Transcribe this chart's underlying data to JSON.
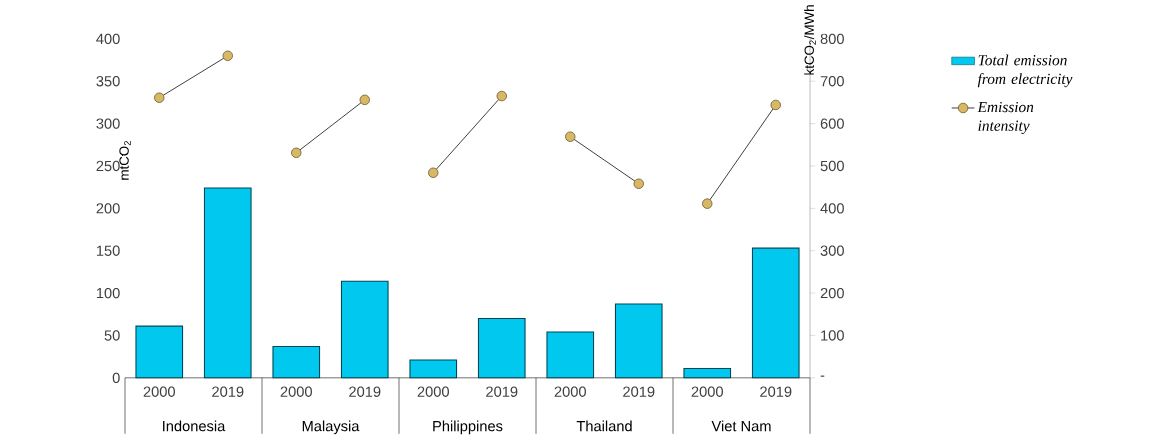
{
  "chart_data": {
    "type": "bar",
    "categories": [
      "2000",
      "2019",
      "2000",
      "2019",
      "2000",
      "2019",
      "2000",
      "2019",
      "2000",
      "2019"
    ],
    "ylabel": "mtCO$_{2}$",
    "y2label": "ktCO$_{2}$/MWh",
    "ylim": [
      0,
      400
    ],
    "yticks": [
      0,
      50,
      100,
      150,
      200,
      250,
      300,
      350,
      400
    ],
    "y2lim": [
      0,
      800
    ],
    "y2ticks": [
      {
        "value": 0,
        "label": "-"
      },
      100,
      200,
      300,
      400,
      500,
      600,
      700,
      800
    ],
    "series": [
      {
        "name": "Total emission from electricity",
        "color": "#00c8ef",
        "values": [
          61,
          224,
          37,
          114,
          21,
          70,
          54,
          87,
          11,
          153
        ]
      },
      {
        "name": "Emission intensity",
        "type": "line",
        "axis": "y2",
        "color": "#d8b865",
        "values": [
          661,
          760,
          null,
          null,
          null,
          null,
          null,
          null,
          null,
          null
        ]
      },
      {
        "type": "line",
        "axis": "y2",
        "color": "#d8b865",
        "values": [
          null,
          null,
          531,
          656,
          null,
          null,
          null,
          null,
          null,
          null
        ]
      },
      {
        "type": "line",
        "axis": "y2",
        "color": "#d8b865",
        "values": [
          null,
          null,
          null,
          null,
          484,
          665,
          null,
          null,
          null,
          null
        ]
      },
      {
        "type": "line",
        "axis": "y2",
        "color": "#d8b865",
        "values": [
          null,
          null,
          null,
          null,
          null,
          null,
          569,
          458,
          null,
          null
        ]
      },
      {
        "type": "line",
        "axis": "y2",
        "color": "#d8b865",
        "values": [
          null,
          null,
          null,
          null,
          null,
          null,
          null,
          null,
          411,
          644
        ]
      }
    ],
    "annotations": [
      "Indonesia",
      "Malaysia",
      "Philippines",
      "Thailand",
      "Viet Nam"
    ],
    "marker": "circle",
    "legend": "right"
  }
}
